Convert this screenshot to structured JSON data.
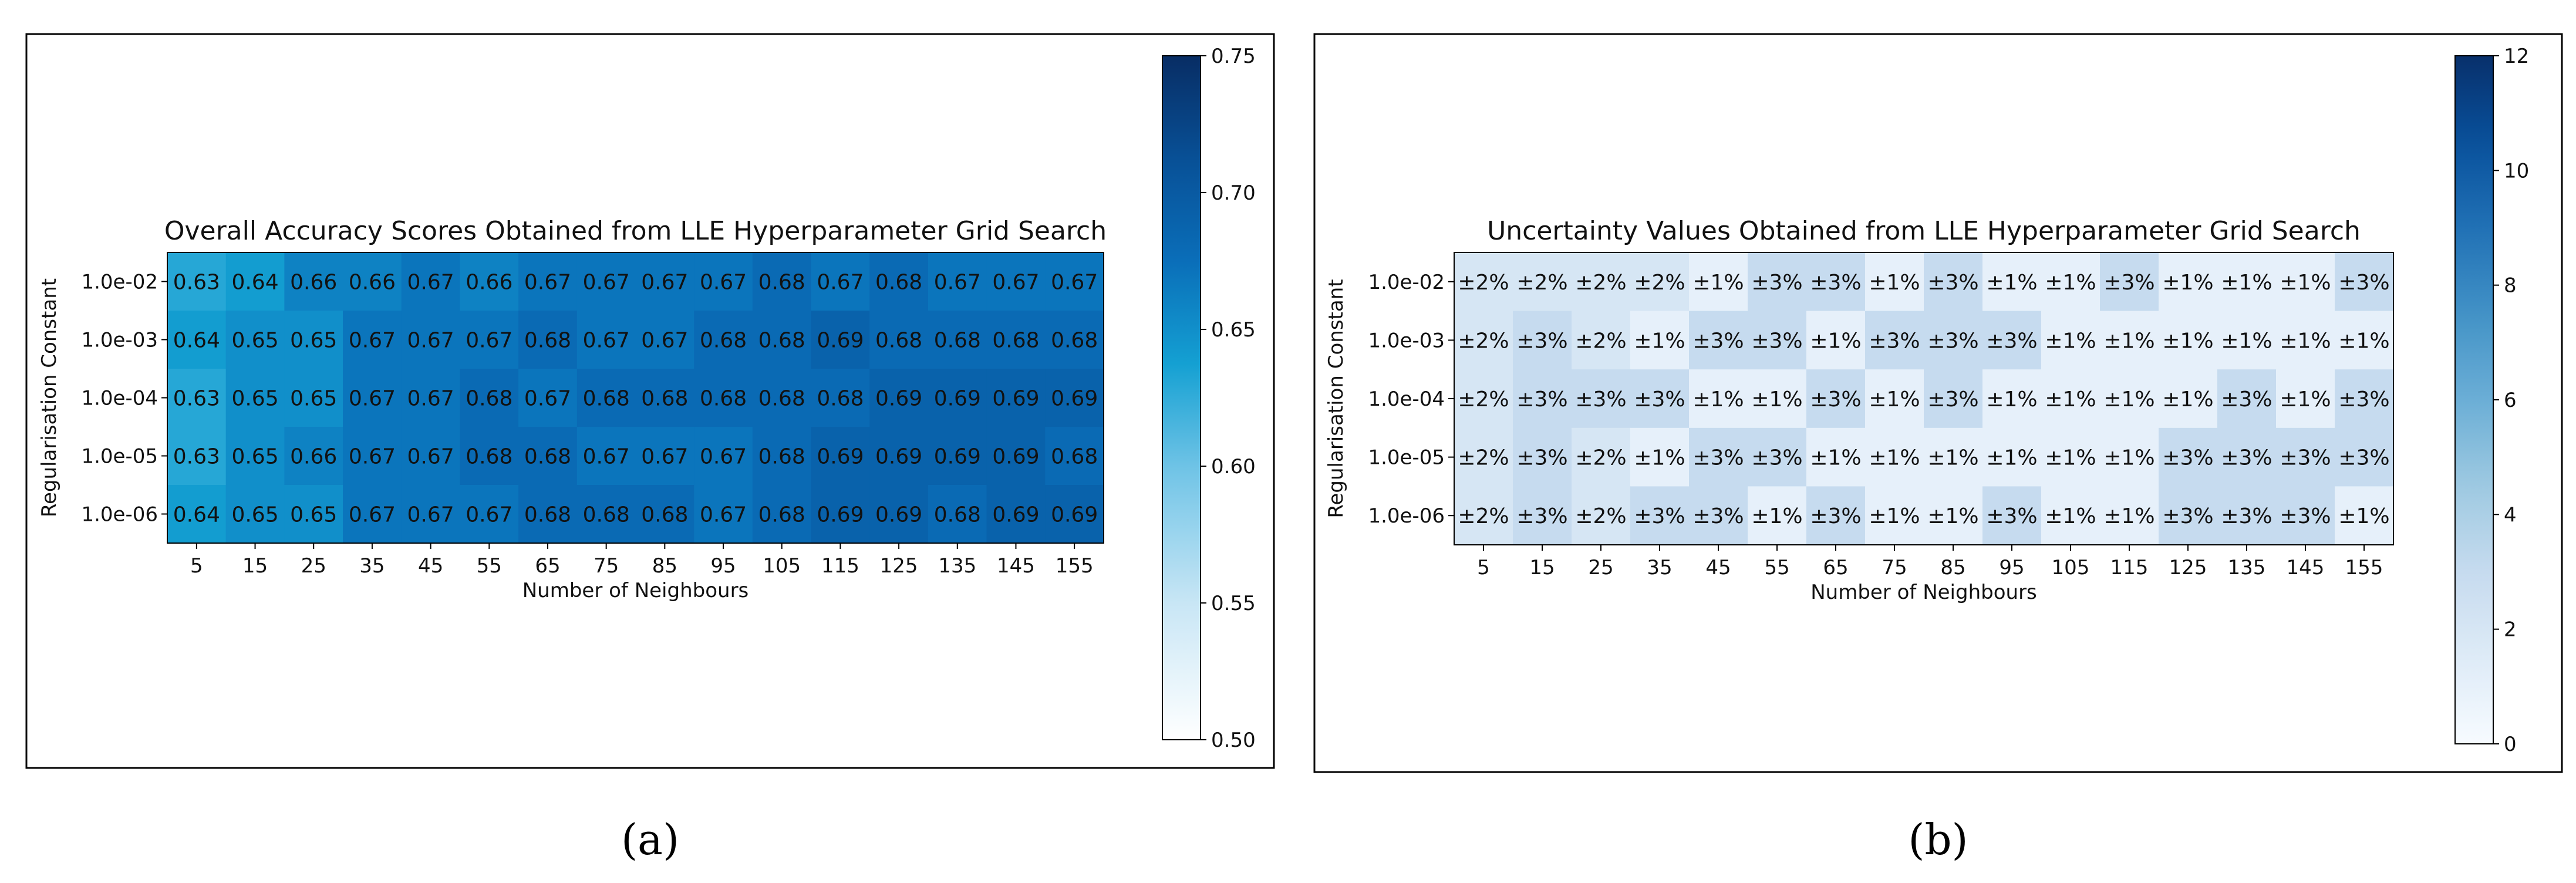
{
  "chart_data": [
    {
      "type": "heatmap",
      "title": "Overall Accuracy Scores Obtained from LLE Hyperparameter Grid Search",
      "xlabel": "Number of Neighbours",
      "ylabel": "Regularisation Constant",
      "x": [
        "5",
        "15",
        "25",
        "35",
        "45",
        "55",
        "65",
        "75",
        "85",
        "95",
        "105",
        "115",
        "125",
        "135",
        "145",
        "155"
      ],
      "y": [
        "1.0e-02",
        "1.0e-03",
        "1.0e-04",
        "1.0e-05",
        "1.0e-06"
      ],
      "values": [
        [
          0.63,
          0.64,
          0.66,
          0.66,
          0.67,
          0.66,
          0.67,
          0.67,
          0.67,
          0.67,
          0.68,
          0.67,
          0.68,
          0.67,
          0.67,
          0.67
        ],
        [
          0.64,
          0.65,
          0.65,
          0.67,
          0.67,
          0.67,
          0.68,
          0.67,
          0.67,
          0.68,
          0.68,
          0.69,
          0.68,
          0.68,
          0.68,
          0.68
        ],
        [
          0.63,
          0.65,
          0.65,
          0.67,
          0.67,
          0.68,
          0.67,
          0.68,
          0.68,
          0.68,
          0.68,
          0.68,
          0.69,
          0.69,
          0.69,
          0.69
        ],
        [
          0.63,
          0.65,
          0.66,
          0.67,
          0.67,
          0.68,
          0.68,
          0.67,
          0.67,
          0.67,
          0.68,
          0.69,
          0.69,
          0.69,
          0.69,
          0.68
        ],
        [
          0.64,
          0.65,
          0.65,
          0.67,
          0.67,
          0.67,
          0.68,
          0.68,
          0.68,
          0.67,
          0.68,
          0.69,
          0.69,
          0.68,
          0.69,
          0.69
        ]
      ],
      "colorbar": {
        "min": 0.5,
        "max": 0.75,
        "ticks": [
          "0.50",
          "0.55",
          "0.60",
          "0.65",
          "0.70",
          "0.75"
        ]
      },
      "colormap": "Blues",
      "caption": "(a)"
    },
    {
      "type": "heatmap",
      "title": "Uncertainty Values Obtained from LLE Hyperparameter Grid Search",
      "xlabel": "Number of Neighbours",
      "ylabel": "Regularisation Constant",
      "x": [
        "5",
        "15",
        "25",
        "35",
        "45",
        "55",
        "65",
        "75",
        "85",
        "95",
        "105",
        "115",
        "125",
        "135",
        "145",
        "155"
      ],
      "y": [
        "1.0e-02",
        "1.0e-03",
        "1.0e-04",
        "1.0e-05",
        "1.0e-06"
      ],
      "values": [
        [
          2,
          2,
          2,
          2,
          1,
          3,
          3,
          1,
          3,
          1,
          1,
          3,
          1,
          1,
          1,
          3
        ],
        [
          2,
          3,
          2,
          1,
          3,
          3,
          1,
          3,
          3,
          3,
          1,
          1,
          1,
          1,
          1,
          1
        ],
        [
          2,
          3,
          3,
          3,
          1,
          1,
          3,
          1,
          3,
          1,
          1,
          1,
          1,
          3,
          1,
          3
        ],
        [
          2,
          3,
          2,
          1,
          3,
          3,
          1,
          1,
          1,
          1,
          1,
          1,
          3,
          3,
          3,
          3
        ],
        [
          2,
          3,
          2,
          3,
          3,
          1,
          3,
          1,
          1,
          3,
          1,
          1,
          3,
          3,
          3,
          1
        ]
      ],
      "value_prefix": "±",
      "value_suffix": "%",
      "colorbar": {
        "min": 0,
        "max": 12,
        "ticks": [
          "0",
          "2",
          "4",
          "6",
          "8",
          "10",
          "12"
        ]
      },
      "colormap": "Blues",
      "caption": "(b)"
    }
  ]
}
